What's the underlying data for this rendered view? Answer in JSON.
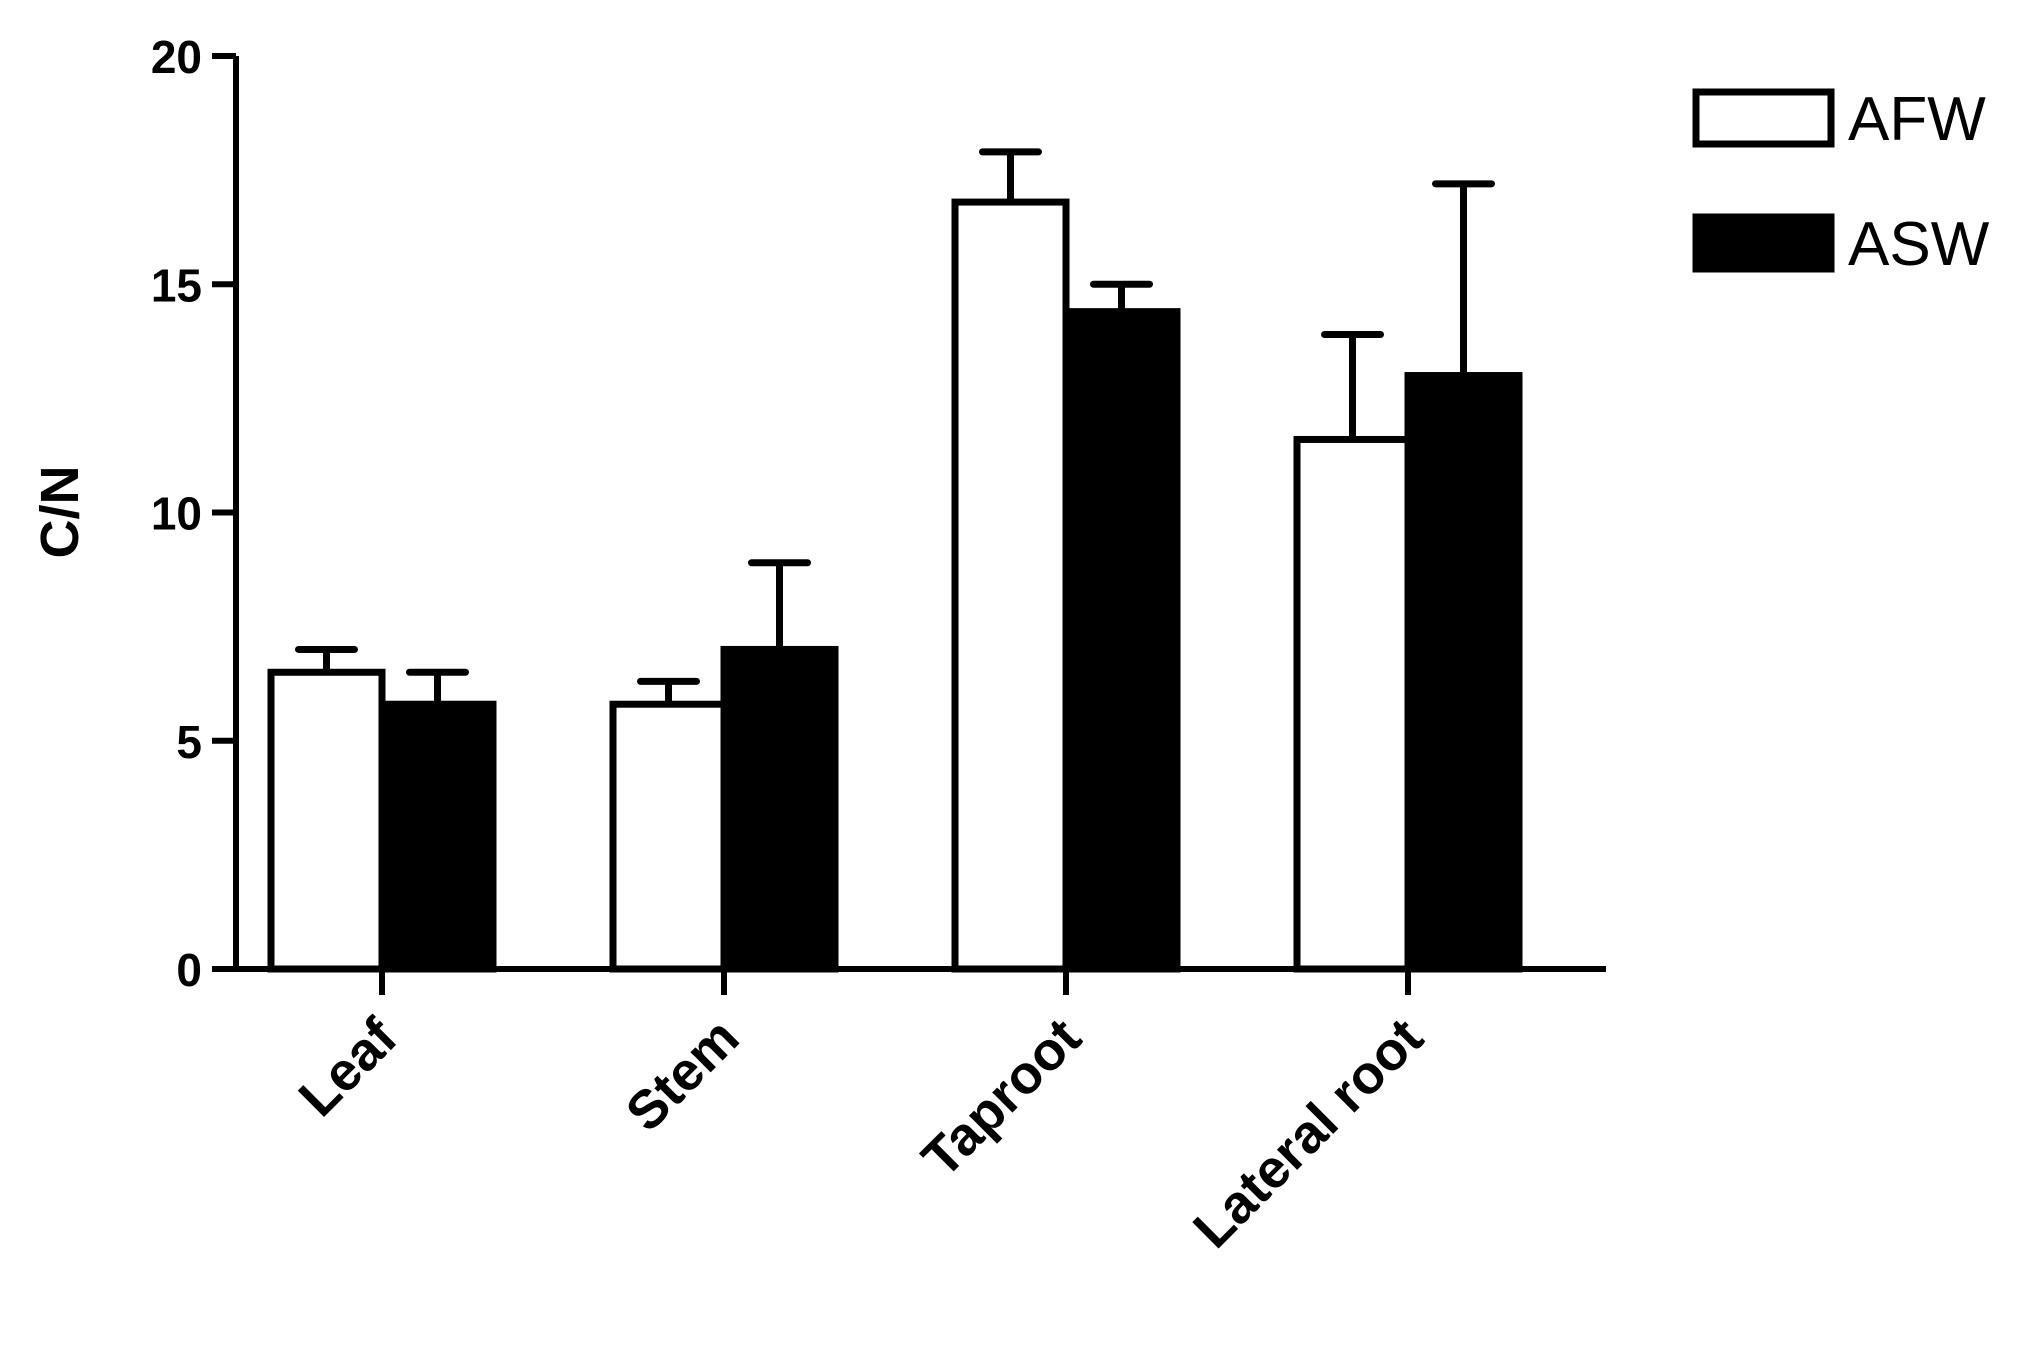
{
  "chart_data": {
    "type": "bar",
    "title": "",
    "xlabel": "",
    "ylabel": "C/N",
    "ylim": [
      0,
      20
    ],
    "yticks": [
      0,
      5,
      10,
      15,
      20
    ],
    "ytick_labels": [
      "0",
      "5",
      "10",
      "15",
      "20"
    ],
    "categories": [
      "Leaf",
      "Stem",
      "Taproot",
      "Lateral root"
    ],
    "series": [
      {
        "name": "AFW",
        "fill": "#ffffff",
        "values": [
          6.5,
          5.8,
          16.8,
          11.6
        ],
        "errors": [
          0.5,
          0.5,
          1.1,
          2.3
        ]
      },
      {
        "name": "ASW",
        "fill": "#000000",
        "values": [
          5.8,
          7.0,
          14.4,
          13.0
        ],
        "errors": [
          0.7,
          1.9,
          0.6,
          4.2
        ]
      }
    ],
    "error_bars": "upper only",
    "grid": false,
    "legend_position": "top-right",
    "bar_edge_color": "#000000",
    "axis_color": "#000000"
  }
}
